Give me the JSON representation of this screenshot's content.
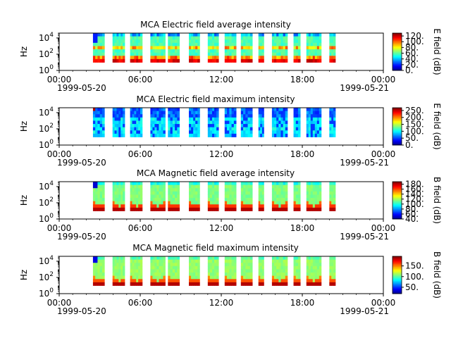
{
  "chart_data": [
    {
      "type": "heatmap",
      "title": "MCA  Electric field average intensity",
      "ylabel": "Hz",
      "y_scale": "log",
      "y_ticks": [
        {
          "exp": "0"
        },
        {
          "exp": "2"
        },
        {
          "exp": "4"
        }
      ],
      "ylim": [
        1,
        40000
      ],
      "x_ticks": [
        "00:00",
        "06:00",
        "12:00",
        "18:00",
        "00:00"
      ],
      "x_start_date": "1999-05-20",
      "x_end_date": "1999-05-21",
      "xlim_hours": [
        0,
        24
      ],
      "colorbar": {
        "label": "E field (dB)",
        "range": [
          0,
          130
        ],
        "ticks": [
          "0.",
          "20.",
          "40.",
          "60.",
          "80.",
          "100.",
          "120."
        ],
        "tick_values": [
          0,
          20,
          40,
          60,
          80,
          100,
          120
        ]
      },
      "kind": "e_avg"
    },
    {
      "type": "heatmap",
      "title": "MCA  Electric field maximum intensity",
      "ylabel": "Hz",
      "y_scale": "log",
      "y_ticks": [
        {
          "exp": "0"
        },
        {
          "exp": "2"
        },
        {
          "exp": "4"
        }
      ],
      "ylim": [
        1,
        40000
      ],
      "x_ticks": [
        "00:00",
        "06:00",
        "12:00",
        "18:00",
        "00:00"
      ],
      "x_start_date": "1999-05-20",
      "x_end_date": "1999-05-21",
      "xlim_hours": [
        0,
        24
      ],
      "colorbar": {
        "label": "E field (dB)",
        "range": [
          0,
          270
        ],
        "ticks": [
          "0.",
          "50.",
          "100.",
          "150.",
          "200.",
          "250."
        ],
        "tick_values": [
          0,
          50,
          100,
          150,
          200,
          250
        ]
      },
      "kind": "e_max"
    },
    {
      "type": "heatmap",
      "title": "MCA  Magnetic field average intensity",
      "ylabel": "Hz",
      "y_scale": "log",
      "y_ticks": [
        {
          "exp": "0"
        },
        {
          "exp": "2"
        },
        {
          "exp": "4"
        }
      ],
      "ylim": [
        1,
        40000
      ],
      "x_ticks": [
        "00:00",
        "06:00",
        "12:00",
        "18:00",
        "00:00"
      ],
      "x_start_date": "1999-05-20",
      "x_end_date": "1999-05-21",
      "xlim_hours": [
        0,
        24
      ],
      "colorbar": {
        "label": "B field (dB)",
        "range": [
          40,
          190
        ],
        "ticks": [
          "40.",
          "60.",
          "80.",
          "100.",
          "120.",
          "140.",
          "160.",
          "180."
        ],
        "tick_values": [
          40,
          60,
          80,
          100,
          120,
          140,
          160,
          180
        ]
      },
      "kind": "b_avg"
    },
    {
      "type": "heatmap",
      "title": "MCA  Magnetic field maximum intensity",
      "ylabel": "Hz",
      "y_scale": "log",
      "y_ticks": [
        {
          "exp": "0"
        },
        {
          "exp": "2"
        },
        {
          "exp": "4"
        }
      ],
      "ylim": [
        1,
        40000
      ],
      "x_ticks": [
        "00:00",
        "06:00",
        "12:00",
        "18:00",
        "00:00"
      ],
      "x_start_date": "1999-05-20",
      "x_end_date": "1999-05-21",
      "xlim_hours": [
        0,
        24
      ],
      "colorbar": {
        "label": "B field (dB)",
        "range": [
          20,
          195
        ],
        "ticks": [
          "50.",
          "100.",
          "150."
        ],
        "tick_values": [
          50,
          100,
          150
        ]
      },
      "kind": "b_max"
    }
  ],
  "data_segments_hours": [
    [
      2.5,
      3.35
    ],
    [
      3.95,
      4.85
    ],
    [
      5.25,
      6.15
    ],
    [
      6.75,
      7.85
    ],
    [
      8.05,
      8.9
    ],
    [
      9.6,
      10.4
    ],
    [
      11.0,
      11.8
    ],
    [
      12.25,
      13.1
    ],
    [
      13.45,
      14.3
    ],
    [
      14.75,
      15.15
    ],
    [
      15.75,
      16.9
    ],
    [
      17.35,
      17.85
    ],
    [
      18.3,
      19.4
    ],
    [
      20.0,
      20.45
    ]
  ],
  "segment_ylim": [
    10,
    40000
  ]
}
